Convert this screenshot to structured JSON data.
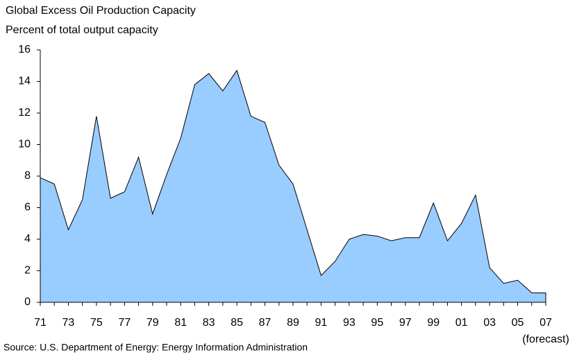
{
  "chart_data": {
    "type": "area",
    "title": "Global Excess Oil Production Capacity",
    "subtitle": "Percent of total output capacity",
    "source": "Source: U.S. Department of Energy: Energy Information Administration",
    "annotation": "(forecast)",
    "categories": [
      "71",
      null,
      "73",
      null,
      "75",
      null,
      "77",
      null,
      "79",
      null,
      "81",
      null,
      "83",
      null,
      "85",
      null,
      "87",
      null,
      "89",
      null,
      "91",
      null,
      "93",
      null,
      "95",
      null,
      "97",
      null,
      "99",
      null,
      "01",
      null,
      "03",
      null,
      "05",
      null,
      "07"
    ],
    "values": [
      7.9,
      7.5,
      4.6,
      6.5,
      11.8,
      6.6,
      7.0,
      9.2,
      5.6,
      8.1,
      10.4,
      13.8,
      14.5,
      13.4,
      14.7,
      11.8,
      11.4,
      8.7,
      7.5,
      4.6,
      1.7,
      2.6,
      4.0,
      4.3,
      4.2,
      3.9,
      4.1,
      4.1,
      6.3,
      3.9,
      5.0,
      6.8,
      2.2,
      1.2,
      1.4,
      0.6,
      0.6
    ],
    "color": "#99ccff",
    "ylim": [
      0,
      16
    ],
    "yticks": [
      0,
      2,
      4,
      6,
      8,
      10,
      12,
      14,
      16
    ]
  }
}
